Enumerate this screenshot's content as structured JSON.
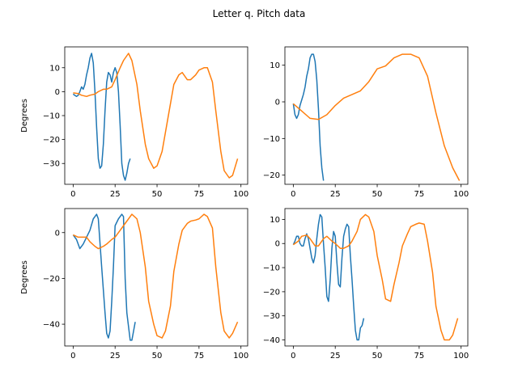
{
  "suptitle": "Letter q. Pitch data",
  "colors": {
    "series_a": "#1f77b4",
    "series_b": "#ff7f0e"
  },
  "chart_data": [
    {
      "type": "line",
      "ylabel": "Degrees",
      "xlim": [
        -5,
        104
      ],
      "ylim": [
        -38.7,
        18.7
      ],
      "xticks": [
        0,
        25,
        50,
        75,
        100
      ],
      "yticks": [
        -30,
        -20,
        -10,
        0,
        10
      ],
      "series": [
        {
          "x": [
            0,
            1,
            2,
            3,
            4,
            5,
            6,
            7,
            8,
            9,
            10,
            11,
            12,
            13,
            14,
            15,
            16,
            17,
            18,
            19,
            20,
            21,
            22,
            23,
            24,
            25,
            26,
            27,
            28,
            29,
            30,
            31,
            32,
            33,
            34
          ],
          "values": [
            -1,
            -1.5,
            -2,
            -1.5,
            0,
            2,
            1,
            3,
            7,
            10,
            14,
            16,
            12,
            0,
            -15,
            -28,
            -32,
            -31,
            -22,
            -8,
            4,
            8,
            7,
            4,
            8,
            10,
            8,
            0,
            -14,
            -30,
            -35,
            -37,
            -34,
            -30,
            -28
          ]
        },
        {
          "x": [
            0,
            3,
            5,
            8,
            10,
            13,
            15,
            18,
            20,
            23,
            25,
            28,
            30,
            33,
            35,
            38,
            40,
            43,
            45,
            48,
            50,
            53,
            55,
            58,
            60,
            63,
            65,
            68,
            70,
            73,
            75,
            78,
            80,
            83,
            85,
            88,
            90,
            93,
            95,
            98
          ],
          "values": [
            -0.5,
            -0.8,
            -1.5,
            -2,
            -1.5,
            -1,
            0,
            1,
            1,
            2,
            5,
            10,
            13,
            16,
            13,
            3,
            -8,
            -22,
            -28,
            -32,
            -31,
            -25,
            -17,
            -5,
            3,
            7,
            8,
            5,
            5,
            7,
            9,
            10,
            10,
            4,
            -8,
            -25,
            -33,
            -36,
            -35,
            -28
          ]
        }
      ]
    },
    {
      "type": "line",
      "xlim": [
        -5,
        104
      ],
      "ylim": [
        -22.5,
        15
      ],
      "xticks": [
        0,
        25,
        50,
        75,
        100
      ],
      "yticks": [
        -20,
        -10,
        0,
        10
      ],
      "series": [
        {
          "x": [
            0,
            1,
            2,
            3,
            4,
            5,
            6,
            7,
            8,
            9,
            10,
            11,
            12,
            13,
            14,
            15,
            16,
            17,
            18
          ],
          "values": [
            -0.5,
            -3.5,
            -4.5,
            -3.5,
            -1,
            0.5,
            2,
            4,
            7,
            9,
            12,
            13,
            13,
            11,
            6,
            -2,
            -12,
            -18,
            -21.5
          ]
        },
        {
          "x": [
            0,
            5,
            10,
            15,
            20,
            25,
            30,
            35,
            40,
            45,
            50,
            55,
            60,
            65,
            70,
            75,
            80,
            85,
            90,
            95,
            99
          ],
          "values": [
            -0.5,
            -2.5,
            -4.5,
            -4.8,
            -3.5,
            -1,
            1,
            2,
            3,
            5.5,
            9,
            9.8,
            12,
            13,
            13,
            12,
            7,
            -3,
            -12,
            -18,
            -21.5
          ]
        }
      ]
    },
    {
      "type": "line",
      "ylabel": "Degrees",
      "xlim": [
        -5,
        104
      ],
      "ylim": [
        -49.5,
        10.5
      ],
      "xticks": [
        0,
        25,
        50,
        75,
        100
      ],
      "yticks": [
        -40,
        -20,
        0
      ],
      "series": [
        {
          "x": [
            0,
            2,
            4,
            6,
            8,
            10,
            12,
            14,
            15,
            17,
            19,
            20,
            21,
            22,
            23,
            24,
            25,
            27,
            29,
            30,
            31,
            32,
            34,
            35,
            36,
            37
          ],
          "values": [
            -1,
            -3,
            -7,
            -5,
            -2,
            1,
            6,
            8,
            6,
            -15,
            -35,
            -44,
            -46,
            -43,
            -30,
            -15,
            3,
            6,
            8,
            7,
            -20,
            -35,
            -47,
            -47,
            -43,
            -39
          ]
        },
        {
          "x": [
            0,
            3,
            5,
            8,
            10,
            13,
            15,
            18,
            20,
            23,
            25,
            28,
            30,
            33,
            35,
            38,
            40,
            43,
            45,
            48,
            50,
            53,
            55,
            58,
            60,
            63,
            65,
            68,
            70,
            73,
            75,
            78,
            80,
            83,
            85,
            88,
            90,
            93,
            95,
            98
          ],
          "values": [
            -1,
            -2,
            -2,
            -2,
            -4,
            -6,
            -7,
            -6,
            -5,
            -3,
            -2,
            1,
            3,
            6,
            8,
            6,
            0,
            -15,
            -30,
            -40,
            -45,
            -46,
            -43,
            -32,
            -17,
            -5,
            1,
            4,
            5,
            5.5,
            6,
            8,
            7,
            2,
            -15,
            -35,
            -43,
            -46,
            -44,
            -39
          ]
        }
      ]
    },
    {
      "type": "line",
      "xlim": [
        -5,
        104
      ],
      "ylim": [
        -42.5,
        14.5
      ],
      "xticks": [
        0,
        25,
        50,
        75,
        100
      ],
      "yticks": [
        -40,
        -30,
        -20,
        -10,
        0,
        10
      ],
      "series": [
        {
          "x": [
            0,
            1,
            2,
            3,
            4,
            5,
            6,
            7,
            8,
            9,
            10,
            11,
            12,
            13,
            14,
            15,
            16,
            17,
            18,
            19,
            20,
            21,
            22,
            23,
            24,
            25,
            26,
            27,
            28,
            29,
            30,
            31,
            32,
            33,
            34,
            35,
            36,
            37,
            38,
            39,
            40,
            41,
            42
          ],
          "values": [
            -0.5,
            1,
            3,
            3,
            0,
            -1,
            -1,
            2,
            4,
            2,
            -2,
            -6,
            -8,
            -5,
            2,
            8,
            12,
            11,
            0,
            -10,
            -22,
            -24,
            -15,
            -2,
            5,
            3,
            -8,
            -17,
            -18,
            -6,
            3,
            6,
            8,
            7,
            -5,
            -15,
            -26,
            -36,
            -40,
            -40,
            -35,
            -34,
            -31
          ]
        },
        {
          "x": [
            0,
            3,
            5,
            8,
            10,
            13,
            15,
            18,
            20,
            23,
            25,
            28,
            30,
            33,
            35,
            38,
            40,
            43,
            45,
            48,
            50,
            53,
            55,
            58,
            60,
            63,
            65,
            68,
            70,
            73,
            75,
            78,
            80,
            83,
            85,
            88,
            90,
            93,
            95,
            98
          ],
          "values": [
            -0.5,
            1,
            3,
            3.5,
            2,
            -1,
            -1,
            2,
            3,
            1,
            0,
            -2,
            -2,
            -1,
            1,
            5,
            10,
            12,
            11,
            5,
            -5,
            -15,
            -23,
            -24,
            -17,
            -8,
            -1,
            4,
            7,
            8,
            8.5,
            8,
            1,
            -12,
            -26,
            -36,
            -40,
            -40,
            -38,
            -31
          ]
        }
      ]
    }
  ]
}
